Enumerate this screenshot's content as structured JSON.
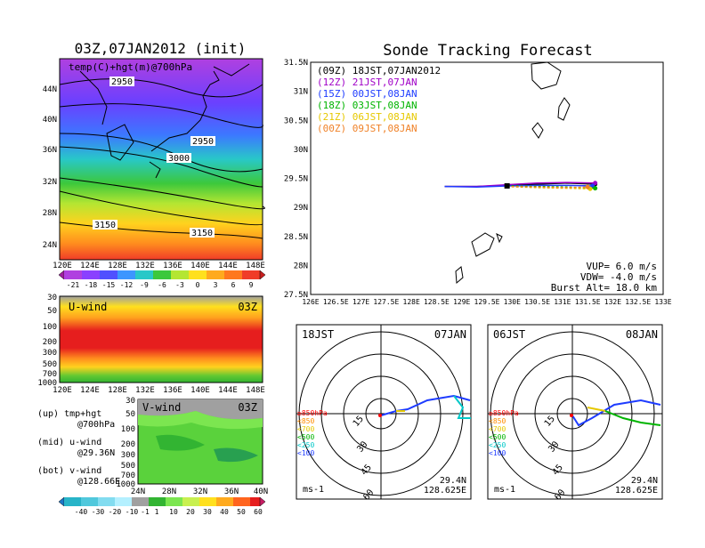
{
  "left_title": "03Z,07JAN2012 (init)",
  "map_top": {
    "label": "temp(C)+hgt(m)@700hPa",
    "y_ticks": [
      "44N",
      "40N",
      "36N",
      "32N",
      "28N",
      "24N"
    ],
    "x_ticks": [
      "120E",
      "124E",
      "128E",
      "132E",
      "136E",
      "140E",
      "144E",
      "148E"
    ],
    "contour_labels": [
      "2950",
      "2950",
      "3000",
      "3150",
      "3150"
    ]
  },
  "temp_colorbar": [
    "-21",
    "-18",
    "-15",
    "-12",
    "-9",
    "-6",
    "-3",
    "0",
    "3",
    "6",
    "9"
  ],
  "uwind": {
    "label": "U-wind",
    "time": "03Z",
    "y_ticks": [
      "30",
      "50",
      "100",
      "200",
      "300",
      "500",
      "700",
      "1000"
    ],
    "x_ticks": [
      "120E",
      "124E",
      "128E",
      "132E",
      "136E",
      "140E",
      "144E",
      "148E"
    ]
  },
  "vwind": {
    "label": "V-wind",
    "time": "03Z",
    "y_ticks": [
      "30",
      "50",
      "100",
      "200",
      "300",
      "500",
      "700",
      "1000"
    ],
    "x_ticks": [
      "24N",
      "28N",
      "32N",
      "36N",
      "40N"
    ]
  },
  "side_legend": {
    "up": "(up) tmp+hgt",
    "up2": "@700hPa",
    "mid": "(mid) u-wind",
    "mid2": "@29.36N",
    "bot": "(bot) v-wind",
    "bot2": "@128.66E"
  },
  "wind_colorbar": [
    "-40",
    "-30",
    "-20",
    "-10",
    "-1",
    "1",
    "10",
    "20",
    "30",
    "40",
    "50",
    "60"
  ],
  "tracking": {
    "title": "Sonde Tracking Forecast",
    "y_ticks": [
      "31.5N",
      "31N",
      "30.5N",
      "30N",
      "29.5N",
      "29N",
      "28.5N",
      "28N",
      "27.5N"
    ],
    "x_ticks": [
      "126E",
      "126.5E",
      "127E",
      "127.5E",
      "128E",
      "128.5E",
      "129E",
      "129.5E",
      "130E",
      "130.5E",
      "131E",
      "131.5E",
      "132E",
      "132.5E",
      "133E"
    ],
    "legend": [
      {
        "text": "(09Z)  18JST,07JAN2012",
        "color": "#000000"
      },
      {
        "text": "(12Z)  21JST,07JAN",
        "color": "#a000c8"
      },
      {
        "text": "(15Z)  00JST,08JAN",
        "color": "#1e3cff"
      },
      {
        "text": "(18Z)  03JST,08JAN",
        "color": "#00b400"
      },
      {
        "text": "(21Z)  06JST,08JAN",
        "color": "#e6c800"
      },
      {
        "text": "(00Z)  09JST,08JAN",
        "color": "#f08228"
      }
    ],
    "vup": "VUP=  6.0  m/s",
    "vdw": "VDW= -4.0  m/s",
    "burst": "Burst Alt= 18.0  km"
  },
  "chart_data": {
    "type": "line",
    "xlabel": "",
    "ylabel": "",
    "xlim": [
      126,
      133
    ],
    "ylim": [
      27.5,
      31.5
    ],
    "series": [
      {
        "name": "(09Z)  18JST,07JAN2012",
        "x": [
          128.66,
          129.3,
          129.9,
          130.5,
          131.1,
          131.65
        ],
        "y": [
          29.36,
          29.36,
          29.38,
          29.4,
          29.42,
          29.4
        ]
      },
      {
        "name": "(12Z)  21JST,07JAN",
        "x": [
          128.66,
          129.3,
          129.9,
          130.5,
          131.1,
          131.65
        ],
        "y": [
          29.36,
          29.36,
          29.39,
          29.42,
          29.43,
          29.42
        ]
      },
      {
        "name": "(15Z)  00JST,08JAN",
        "x": [
          128.66,
          129.3,
          129.9,
          130.5,
          131.1,
          131.6
        ],
        "y": [
          29.36,
          29.35,
          29.37,
          29.38,
          29.38,
          29.37
        ]
      },
      {
        "name": "(18Z)  03JST,08JAN",
        "x": [
          129.9,
          130.5,
          131.1,
          131.65
        ],
        "y": [
          29.37,
          29.36,
          29.35,
          29.33
        ]
      },
      {
        "name": "(21Z)  06JST,08JAN",
        "x": [
          129.9,
          130.5,
          131.1,
          131.55
        ],
        "y": [
          29.36,
          29.34,
          29.33,
          29.32
        ]
      },
      {
        "name": "(00Z)  09JST,08JAN",
        "x": [
          129.9,
          130.5,
          131.1,
          131.5
        ],
        "y": [
          29.36,
          29.35,
          29.34,
          29.35
        ]
      }
    ]
  },
  "hodo1": {
    "time": "18JST",
    "date": "07JAN",
    "loc1": "29.4N",
    "loc2": "128.625E",
    "unit": "ms-1",
    "rings": [
      "15",
      "30",
      "45",
      "60"
    ],
    "levels": [
      {
        "text": "≥850hPa",
        "color": "#ff0000"
      },
      {
        "text": "<850",
        "color": "#ff8c00"
      },
      {
        "text": "<700",
        "color": "#e6c800"
      },
      {
        "text": "<500",
        "color": "#00b400"
      },
      {
        "text": "<250",
        "color": "#00c8c8"
      },
      {
        "text": "<100",
        "color": "#1e3cff"
      }
    ]
  },
  "hodo2": {
    "time": "06JST",
    "date": "08JAN",
    "loc1": "29.4N",
    "loc2": "128.625E",
    "unit": "ms-1",
    "rings": [
      "15",
      "30",
      "45",
      "60"
    ]
  }
}
